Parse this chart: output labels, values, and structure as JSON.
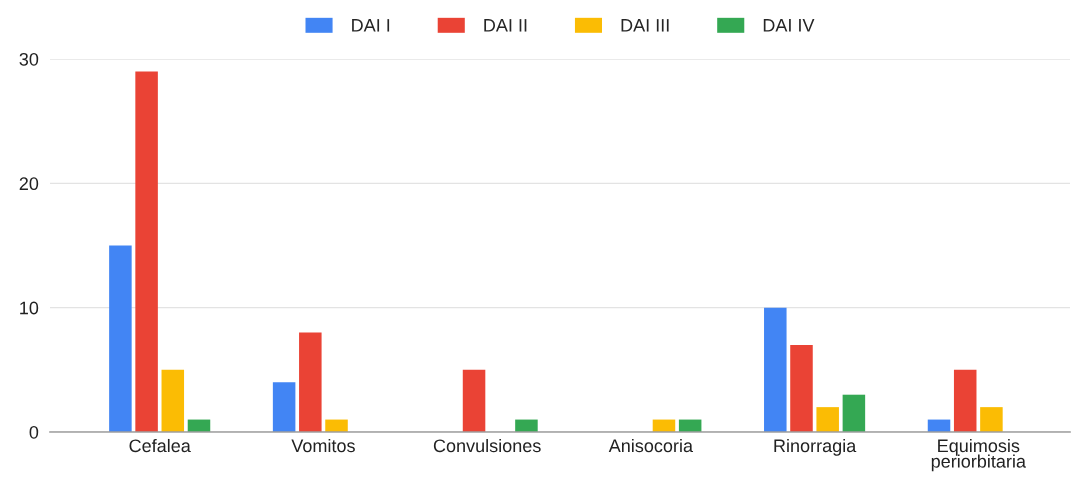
{
  "chart_data": {
    "type": "bar",
    "categories": [
      "Cefalea",
      "Vomitos",
      "Convulsiones",
      "Anisocoria",
      "Rinorragia",
      "Equimosis\nperiorbitaria"
    ],
    "series": [
      {
        "name": "DAI I",
        "color": "#4285f4",
        "values": [
          15,
          4,
          0,
          0,
          10,
          1
        ]
      },
      {
        "name": "DAI II",
        "color": "#ea4335",
        "values": [
          29,
          8,
          5,
          0,
          7,
          5
        ]
      },
      {
        "name": "DAI III",
        "color": "#fbbc04",
        "values": [
          5,
          1,
          0,
          1,
          2,
          2
        ]
      },
      {
        "name": "DAI IV",
        "color": "#34a853",
        "values": [
          1,
          0,
          1,
          1,
          3,
          0
        ]
      }
    ],
    "ylim": [
      0,
      30
    ],
    "yticks": [
      0,
      10,
      20,
      30
    ],
    "grid": "y",
    "legend": "top"
  }
}
